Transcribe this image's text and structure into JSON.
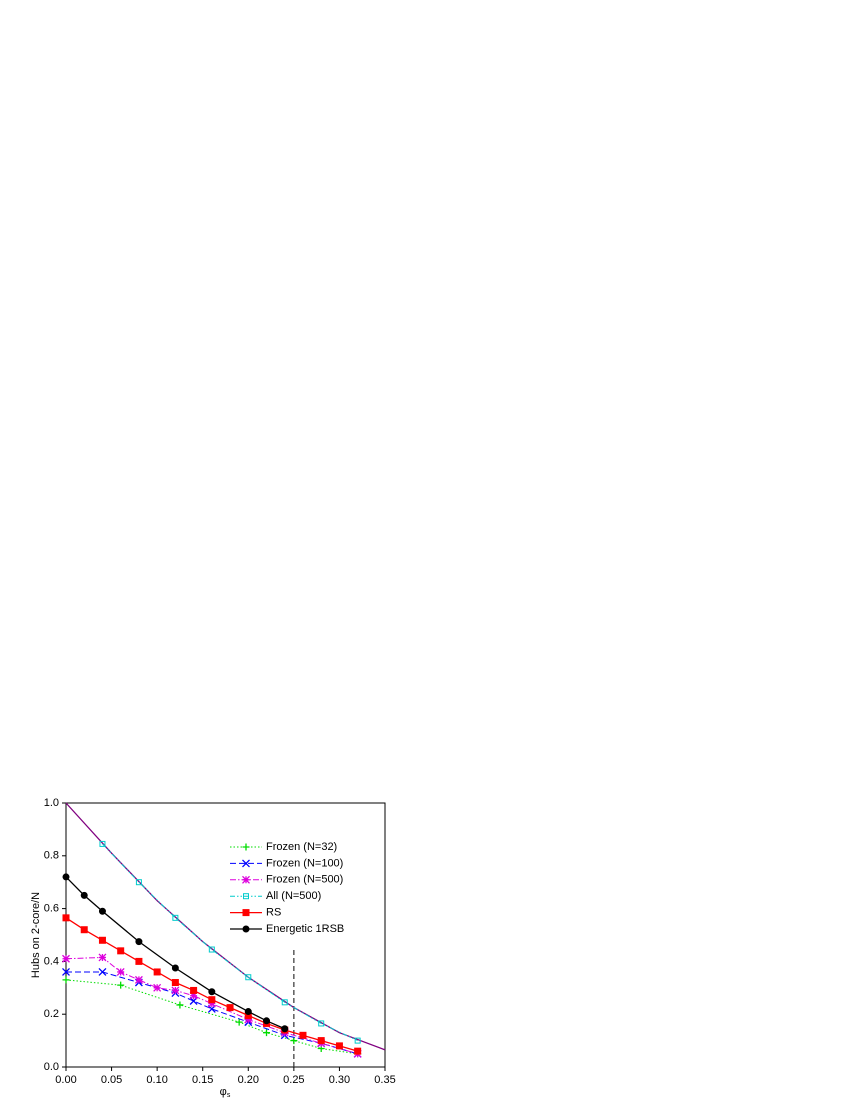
{
  "chart_data": {
    "type": "line",
    "y_label": "Hubs on 2-core/N",
    "x_label": "φ",
    "x_label_sub": "s",
    "xlim": [
      0,
      0.35
    ],
    "ylim": [
      0,
      1.0
    ],
    "xticks": [
      {
        "value": 0,
        "label": "0.00"
      },
      {
        "value": 0.05,
        "label": "0.05"
      },
      {
        "value": 0.1,
        "label": "0.10"
      },
      {
        "value": 0.15,
        "label": "0.15"
      },
      {
        "value": 0.2,
        "label": "0.20"
      },
      {
        "value": 0.25,
        "label": "0.25"
      },
      {
        "value": 0.3,
        "label": "0.30"
      },
      {
        "value": 0.35,
        "label": "0.35"
      }
    ],
    "yticks": [
      {
        "value": 0,
        "label": "0.0"
      },
      0.2,
      0.4,
      0.6,
      0.8,
      {
        "value": 1,
        "label": "1.0"
      }
    ],
    "vline": 0.25,
    "legend": "upper right",
    "series": [
      {
        "color": "#800080",
        "linestyle": "solid",
        "marker": "none",
        "x": [
          0,
          0.05,
          0.1,
          0.15,
          0.2,
          0.25,
          0.3,
          0.35
        ],
        "values": [
          1.0,
          0.81,
          0.63,
          0.475,
          0.34,
          0.225,
          0.13,
          0.065
        ]
      },
      {
        "name": "Frozen (N=32)",
        "color": "#00dd00",
        "linestyle": "dotted",
        "marker": "plus",
        "x": [
          0,
          0.06,
          0.125,
          0.19,
          0.22,
          0.25,
          0.28,
          0.32
        ],
        "values": [
          0.33,
          0.31,
          0.235,
          0.17,
          0.13,
          0.1,
          0.07,
          0.05
        ]
      },
      {
        "name": "Frozen (N=100)",
        "color": "#0000ff",
        "linestyle": "dashed",
        "marker": "cross",
        "x": [
          0,
          0.04,
          0.08,
          0.12,
          0.14,
          0.16,
          0.2,
          0.24,
          0.28,
          0.32
        ],
        "values": [
          0.36,
          0.36,
          0.32,
          0.28,
          0.25,
          0.22,
          0.17,
          0.12,
          0.09,
          0.05
        ]
      },
      {
        "name": "Frozen (N=500)",
        "color": "#dd00dd",
        "linestyle": "dashdot",
        "marker": "star",
        "x": [
          0,
          0.04,
          0.06,
          0.08,
          0.1,
          0.12,
          0.14,
          0.16,
          0.2,
          0.24,
          0.28,
          0.32
        ],
        "values": [
          0.41,
          0.415,
          0.36,
          0.33,
          0.3,
          0.29,
          0.27,
          0.24,
          0.18,
          0.13,
          0.09,
          0.05
        ]
      },
      {
        "name": "All (N=500)",
        "color": "#00cccc",
        "linestyle": "dashdotdot",
        "marker": "opensquare",
        "x": [
          0.04,
          0.08,
          0.12,
          0.16,
          0.2,
          0.24,
          0.28,
          0.32
        ],
        "values": [
          0.845,
          0.7,
          0.565,
          0.445,
          0.34,
          0.245,
          0.165,
          0.1
        ]
      },
      {
        "name": "RS",
        "color": "#ff0000",
        "linestyle": "solid",
        "marker": "square",
        "x": [
          0,
          0.02,
          0.04,
          0.06,
          0.08,
          0.1,
          0.12,
          0.14,
          0.16,
          0.18,
          0.2,
          0.22,
          0.24,
          0.26,
          0.28,
          0.3,
          0.32
        ],
        "values": [
          0.565,
          0.52,
          0.48,
          0.44,
          0.4,
          0.36,
          0.32,
          0.29,
          0.255,
          0.225,
          0.195,
          0.165,
          0.14,
          0.12,
          0.1,
          0.08,
          0.06
        ]
      },
      {
        "name": "Energetic 1RSB",
        "color": "#000000",
        "linestyle": "solid",
        "marker": "circle",
        "x": [
          0,
          0.02,
          0.04,
          0.08,
          0.12,
          0.16,
          0.2,
          0.22,
          0.24
        ],
        "values": [
          0.72,
          0.65,
          0.59,
          0.475,
          0.375,
          0.285,
          0.21,
          0.175,
          0.145
        ]
      }
    ]
  }
}
